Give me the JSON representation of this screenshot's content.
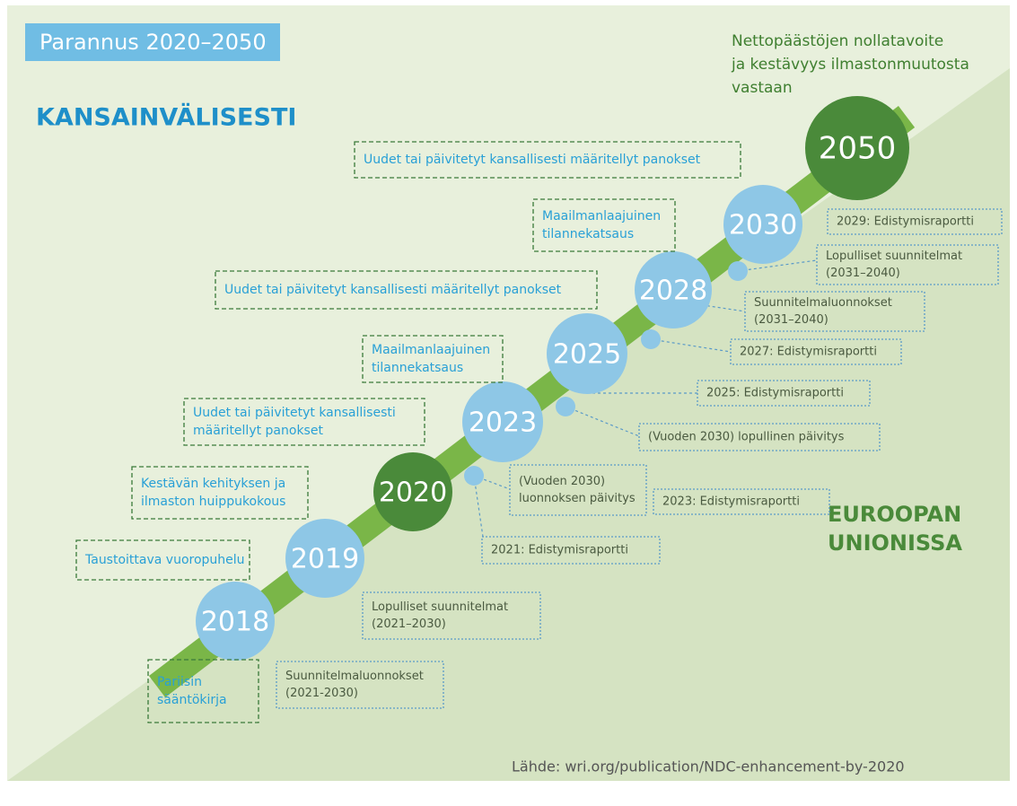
{
  "title": "Parannus 2020–2050",
  "international_label": "KANSAINVÄLISESTI",
  "eu_label": {
    "lines": [
      "EUROOPAN",
      "UNIONISSA"
    ]
  },
  "goal": {
    "lines": [
      "Nettopäästöjen nollatavoite",
      "ja kestävyys ilmastonmuutosta",
      "vastaan"
    ]
  },
  "milestones": [
    "2018",
    "2019",
    "2020",
    "2023",
    "2025",
    "2028",
    "2030",
    "2050"
  ],
  "intl_boxes": [
    {
      "lines": [
        "Uudet tai päivitetyt kansallisesti määritellyt panokset"
      ]
    },
    {
      "lines": [
        "Maailmanlaajuinen",
        "tilannekatsaus"
      ]
    },
    {
      "lines": [
        "Uudet tai päivitetyt kansallisesti määritellyt panokset"
      ]
    },
    {
      "lines": [
        "Maailmanlaajuinen",
        "tilannekatsaus"
      ]
    },
    {
      "lines": [
        "Uudet tai päivitetyt kansallisesti",
        "määritellyt panokset"
      ]
    },
    {
      "lines": [
        "Kestävän kehityksen ja",
        "ilmaston huippukokous"
      ]
    },
    {
      "lines": [
        "Taustoittava vuoropuhelu"
      ]
    },
    {
      "lines": [
        "Pariisin",
        "sääntökirja"
      ]
    }
  ],
  "eu_boxes": [
    {
      "lines": [
        "2029: Edistymisraportti"
      ]
    },
    {
      "lines": [
        "Lopulliset suunnitelmat",
        "(2031–2040)"
      ]
    },
    {
      "lines": [
        "Suunnitelmaluonnokset",
        "(2031–2040)"
      ]
    },
    {
      "lines": [
        "2027: Edistymisraportti"
      ]
    },
    {
      "lines": [
        "2025: Edistymisraportti"
      ]
    },
    {
      "lines": [
        "(Vuoden 2030) lopullinen päivitys"
      ]
    },
    {
      "lines": [
        "(Vuoden 2030)",
        "luonnoksen päivitys"
      ]
    },
    {
      "lines": [
        "2023: Edistymisraportti"
      ]
    },
    {
      "lines": [
        "2021: Edistymisraportti"
      ]
    },
    {
      "lines": [
        "Lopulliset suunnitelmat",
        "(2021–2030)"
      ]
    },
    {
      "lines": [
        "Suunnitelmaluonnokset",
        "(2021-2030)"
      ]
    }
  ],
  "source": "Lähde: wri.org/publication/NDC-enhancement-by-2020"
}
